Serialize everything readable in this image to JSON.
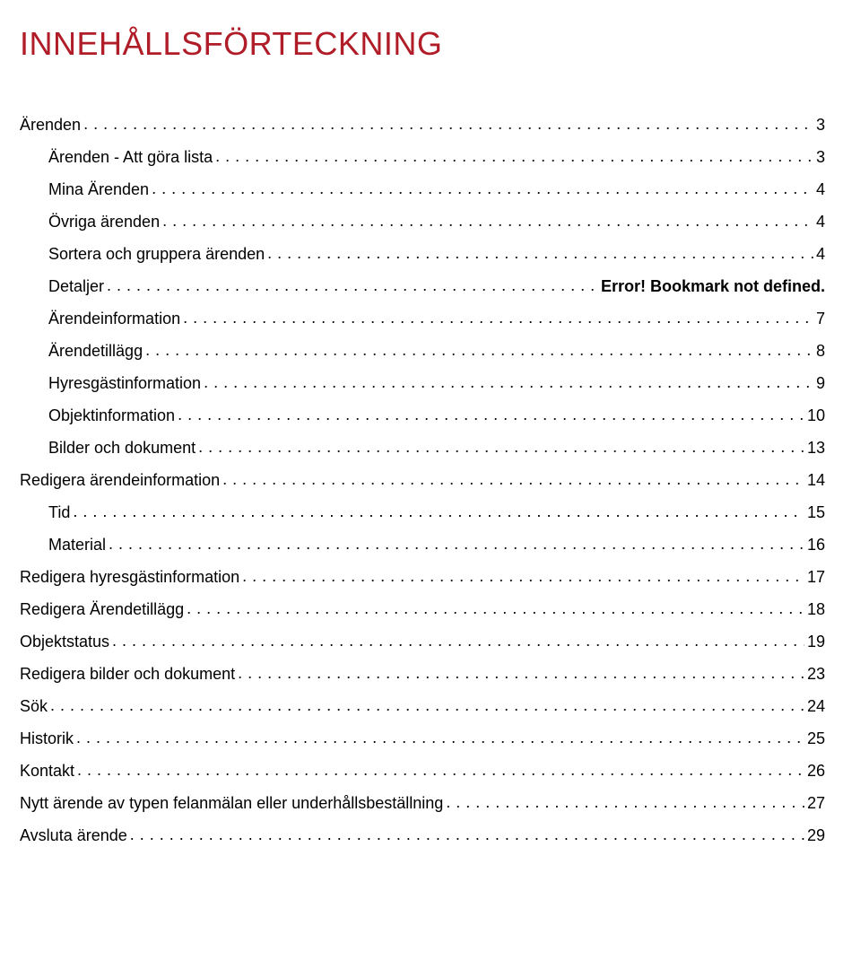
{
  "title": "INNEHÅLLSFÖRTECKNING",
  "colors": {
    "title": "#b01c27",
    "text": "#000000",
    "background": "#ffffff"
  },
  "fonts": {
    "title_size": 36,
    "row_size": 18
  },
  "toc": [
    {
      "label": "Ärenden",
      "page": "3",
      "indent": false,
      "bold_page": false
    },
    {
      "label": "Ärenden - Att göra lista",
      "page": "3",
      "indent": true,
      "bold_page": false
    },
    {
      "label": "Mina Ärenden",
      "page": "4",
      "indent": true,
      "bold_page": false
    },
    {
      "label": "Övriga ärenden",
      "page": "4",
      "indent": true,
      "bold_page": false
    },
    {
      "label": "Sortera och gruppera ärenden",
      "page": "4",
      "indent": true,
      "bold_page": false
    },
    {
      "label": "Detaljer",
      "page": "Error! Bookmark not defined.",
      "indent": true,
      "bold_page": true
    },
    {
      "label": "Ärendeinformation",
      "page": "7",
      "indent": true,
      "bold_page": false
    },
    {
      "label": "Ärendetillägg",
      "page": "8",
      "indent": true,
      "bold_page": false
    },
    {
      "label": "Hyresgästinformation",
      "page": "9",
      "indent": true,
      "bold_page": false
    },
    {
      "label": "Objektinformation",
      "page": "10",
      "indent": true,
      "bold_page": false
    },
    {
      "label": "Bilder och dokument",
      "page": "13",
      "indent": true,
      "bold_page": false
    },
    {
      "label": "Redigera ärendeinformation",
      "page": "14",
      "indent": false,
      "bold_page": false
    },
    {
      "label": "Tid",
      "page": "15",
      "indent": true,
      "bold_page": false
    },
    {
      "label": "Material",
      "page": "16",
      "indent": true,
      "bold_page": false
    },
    {
      "label": "Redigera hyresgästinformation",
      "page": "17",
      "indent": false,
      "bold_page": false
    },
    {
      "label": "Redigera Ärendetillägg",
      "page": "18",
      "indent": false,
      "bold_page": false
    },
    {
      "label": "Objektstatus",
      "page": "19",
      "indent": false,
      "bold_page": false
    },
    {
      "label": "Redigera bilder och dokument",
      "page": "23",
      "indent": false,
      "bold_page": false
    },
    {
      "label": "Sök",
      "page": "24",
      "indent": false,
      "bold_page": false
    },
    {
      "label": "Historik",
      "page": "25",
      "indent": false,
      "bold_page": false
    },
    {
      "label": "Kontakt",
      "page": "26",
      "indent": false,
      "bold_page": false
    },
    {
      "label": "Nytt ärende av typen felanmälan eller underhållsbeställning",
      "page": "27",
      "indent": false,
      "bold_page": false
    },
    {
      "label": "Avsluta ärende",
      "page": "29",
      "indent": false,
      "bold_page": false
    }
  ]
}
